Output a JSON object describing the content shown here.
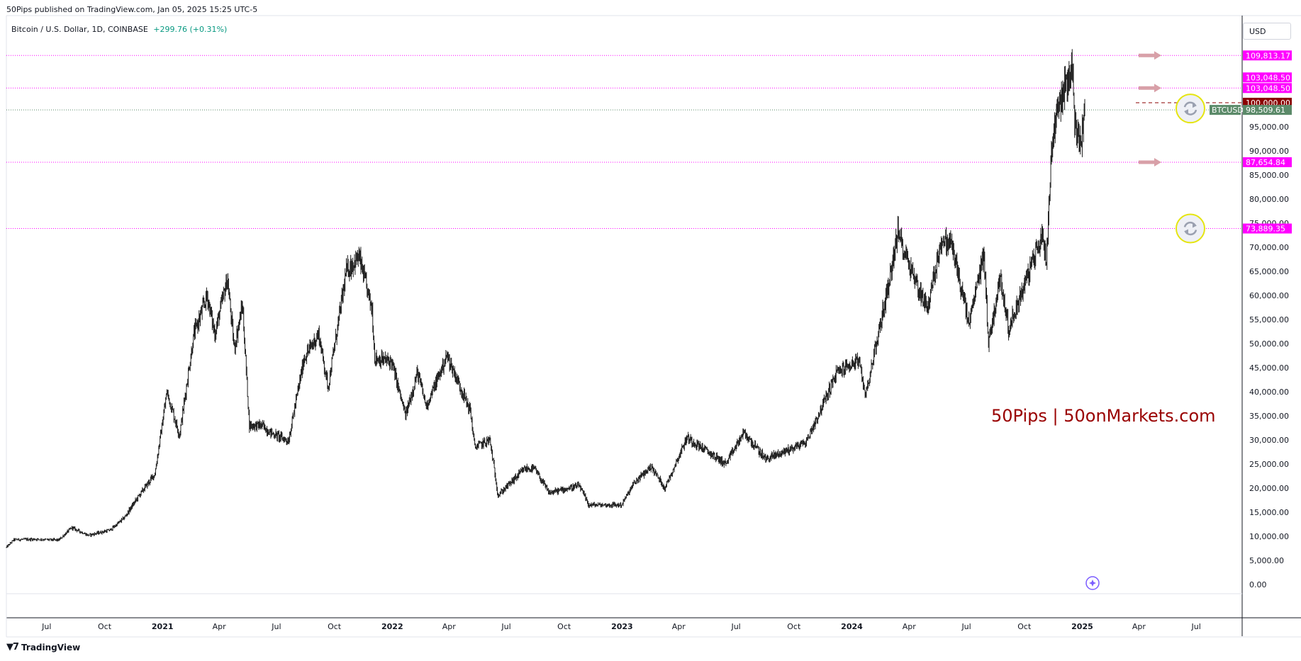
{
  "header": {
    "publisher_line": "50Pips published on TradingView.com, Jan 05, 2025 15:25 UTC-5",
    "symbol_line": "Bitcoin / U.S. Dollar, 1D, COINBASE",
    "change_text": "+299.76 (+0.31%)"
  },
  "currency_selector": "USD",
  "footer": {
    "brand": "TradingView",
    "brand_icon": "tradingview-logo-icon"
  },
  "colors": {
    "up": "#089981",
    "down": "#f23645",
    "candle": "#1c1c1c",
    "magenta": "#ff00ff",
    "dark_red": "#8b0000",
    "btc_label": "#5b8a69",
    "arrow": "#d8a0a8",
    "watermark": "#990000"
  },
  "chart_data": {
    "type": "candlestick",
    "symbol": "BTCUSD",
    "interval": "1D",
    "exchange": "COINBASE",
    "ylim": [
      0,
      110000
    ],
    "y_ticks": [
      0,
      5000,
      10000,
      15000,
      20000,
      25000,
      30000,
      35000,
      40000,
      45000,
      50000,
      55000,
      60000,
      65000,
      70000,
      75000,
      80000,
      85000,
      90000,
      95000
    ],
    "y_tick_labels": [
      "0.00",
      "5,000.00",
      "10,000.00",
      "15,000.00",
      "20,000.00",
      "25,000.00",
      "30,000.00",
      "35,000.00",
      "40,000.00",
      "45,000.00",
      "50,000.00",
      "55,000.00",
      "60,000.00",
      "65,000.00",
      "70,000.00",
      "75,000.00",
      "80,000.00",
      "85,000.00",
      "90,000.00",
      "95,000.00"
    ],
    "x_ticks": [
      {
        "date": "2020-07-01",
        "label": "Jul",
        "bold": false
      },
      {
        "date": "2020-10-01",
        "label": "Oct",
        "bold": false
      },
      {
        "date": "2021-01-01",
        "label": "2021",
        "bold": true
      },
      {
        "date": "2021-04-01",
        "label": "Apr",
        "bold": false
      },
      {
        "date": "2021-07-01",
        "label": "Jul",
        "bold": false
      },
      {
        "date": "2021-10-01",
        "label": "Oct",
        "bold": false
      },
      {
        "date": "2022-01-01",
        "label": "2022",
        "bold": true
      },
      {
        "date": "2022-04-01",
        "label": "Apr",
        "bold": false
      },
      {
        "date": "2022-07-01",
        "label": "Jul",
        "bold": false
      },
      {
        "date": "2022-10-01",
        "label": "Oct",
        "bold": false
      },
      {
        "date": "2023-01-01",
        "label": "2023",
        "bold": true
      },
      {
        "date": "2023-04-01",
        "label": "Apr",
        "bold": false
      },
      {
        "date": "2023-07-01",
        "label": "Jul",
        "bold": false
      },
      {
        "date": "2023-10-01",
        "label": "Oct",
        "bold": false
      },
      {
        "date": "2024-01-01",
        "label": "2024",
        "bold": true
      },
      {
        "date": "2024-04-01",
        "label": "Apr",
        "bold": false
      },
      {
        "date": "2024-07-01",
        "label": "Jul",
        "bold": false
      },
      {
        "date": "2024-10-01",
        "label": "Oct",
        "bold": false
      },
      {
        "date": "2025-01-01",
        "label": "2025",
        "bold": true
      },
      {
        "date": "2025-04-01",
        "label": "Apr",
        "bold": false
      },
      {
        "date": "2025-07-01",
        "label": "Jul",
        "bold": false
      }
    ],
    "x_range": [
      "2020-04-28",
      "2025-09-12"
    ],
    "price_path": [
      [
        "2020-04-28",
        7700
      ],
      [
        "2020-05-10",
        9300
      ],
      [
        "2020-06-15",
        9400
      ],
      [
        "2020-07-20",
        9200
      ],
      [
        "2020-08-10",
        11800
      ],
      [
        "2020-09-05",
        10200
      ],
      [
        "2020-10-10",
        11300
      ],
      [
        "2020-11-01",
        13800
      ],
      [
        "2020-11-25",
        18500
      ],
      [
        "2020-12-20",
        23000
      ],
      [
        "2021-01-08",
        40000
      ],
      [
        "2021-01-28",
        31000
      ],
      [
        "2021-02-20",
        52000
      ],
      [
        "2021-03-13",
        60000
      ],
      [
        "2021-03-25",
        52000
      ],
      [
        "2021-04-14",
        63500
      ],
      [
        "2021-04-25",
        49000
      ],
      [
        "2021-05-08",
        58000
      ],
      [
        "2021-05-19",
        33000
      ],
      [
        "2021-06-08",
        33000
      ],
      [
        "2021-06-22",
        31500
      ],
      [
        "2021-07-20",
        29800
      ],
      [
        "2021-08-14",
        47000
      ],
      [
        "2021-09-06",
        52000
      ],
      [
        "2021-09-21",
        41000
      ],
      [
        "2021-10-20",
        65000
      ],
      [
        "2021-11-09",
        68000
      ],
      [
        "2021-11-30",
        57000
      ],
      [
        "2021-12-04",
        47000
      ],
      [
        "2021-12-31",
        46200
      ],
      [
        "2022-01-22",
        35000
      ],
      [
        "2022-02-10",
        44000
      ],
      [
        "2022-02-24",
        37000
      ],
      [
        "2022-03-29",
        47500
      ],
      [
        "2022-05-05",
        36000
      ],
      [
        "2022-05-12",
        28500
      ],
      [
        "2022-06-05",
        30000
      ],
      [
        "2022-06-18",
        18500
      ],
      [
        "2022-07-30",
        24000
      ],
      [
        "2022-08-15",
        24000
      ],
      [
        "2022-09-07",
        19000
      ],
      [
        "2022-10-25",
        20500
      ],
      [
        "2022-11-09",
        16500
      ],
      [
        "2022-12-31",
        16500
      ],
      [
        "2023-01-20",
        21000
      ],
      [
        "2023-02-16",
        24500
      ],
      [
        "2023-03-10",
        20000
      ],
      [
        "2023-04-14",
        30500
      ],
      [
        "2023-06-15",
        25000
      ],
      [
        "2023-07-13",
        31500
      ],
      [
        "2023-08-17",
        26000
      ],
      [
        "2023-10-20",
        29500
      ],
      [
        "2023-11-15",
        37000
      ],
      [
        "2023-12-08",
        44000
      ],
      [
        "2024-01-11",
        46500
      ],
      [
        "2024-01-23",
        39500
      ],
      [
        "2024-02-28",
        62000
      ],
      [
        "2024-03-14",
        73000
      ],
      [
        "2024-04-17",
        61000
      ],
      [
        "2024-05-01",
        57500
      ],
      [
        "2024-05-21",
        71000
      ],
      [
        "2024-06-07",
        71000
      ],
      [
        "2024-07-05",
        54000
      ],
      [
        "2024-07-29",
        69000
      ],
      [
        "2024-08-05",
        50000
      ],
      [
        "2024-08-24",
        64000
      ],
      [
        "2024-09-06",
        53000
      ],
      [
        "2024-10-29",
        72500
      ],
      [
        "2024-11-05",
        67800
      ],
      [
        "2024-11-13",
        90000
      ],
      [
        "2024-11-22",
        99000
      ],
      [
        "2024-12-05",
        103000
      ],
      [
        "2024-12-17",
        108000
      ],
      [
        "2024-12-20",
        95000
      ],
      [
        "2024-12-30",
        92000
      ],
      [
        "2025-01-05",
        98500
      ]
    ],
    "levels": [
      {
        "value": 109813.17,
        "label": "109,813.17",
        "color": "#ff00ff",
        "arrow": true
      },
      {
        "value": 103048.5,
        "label": "103,048.50",
        "color": "#ff00ff",
        "arrow": true
      },
      {
        "value": 87654.84,
        "label": "87,654.84",
        "color": "#ff00ff",
        "arrow": true
      },
      {
        "value": 73889.35,
        "label": "73,889.35",
        "color": "#ff00ff",
        "arrow": false
      }
    ],
    "price_labels": [
      {
        "value": 103048.5,
        "label": "103,048.50",
        "color": "#ff00ff"
      },
      {
        "value": 100000.0,
        "label": "100,000.00",
        "color": "#8b0000"
      }
    ],
    "last_price": {
      "symbol": "BTCUSD",
      "value": 98509.61,
      "label": "98,509.61"
    },
    "markers": [
      {
        "value": 98509.61,
        "icon": "refresh-icon"
      },
      {
        "value": 73889.35,
        "icon": "refresh-icon"
      }
    ],
    "watermark": "50Pips | 50onMarkets.com"
  }
}
